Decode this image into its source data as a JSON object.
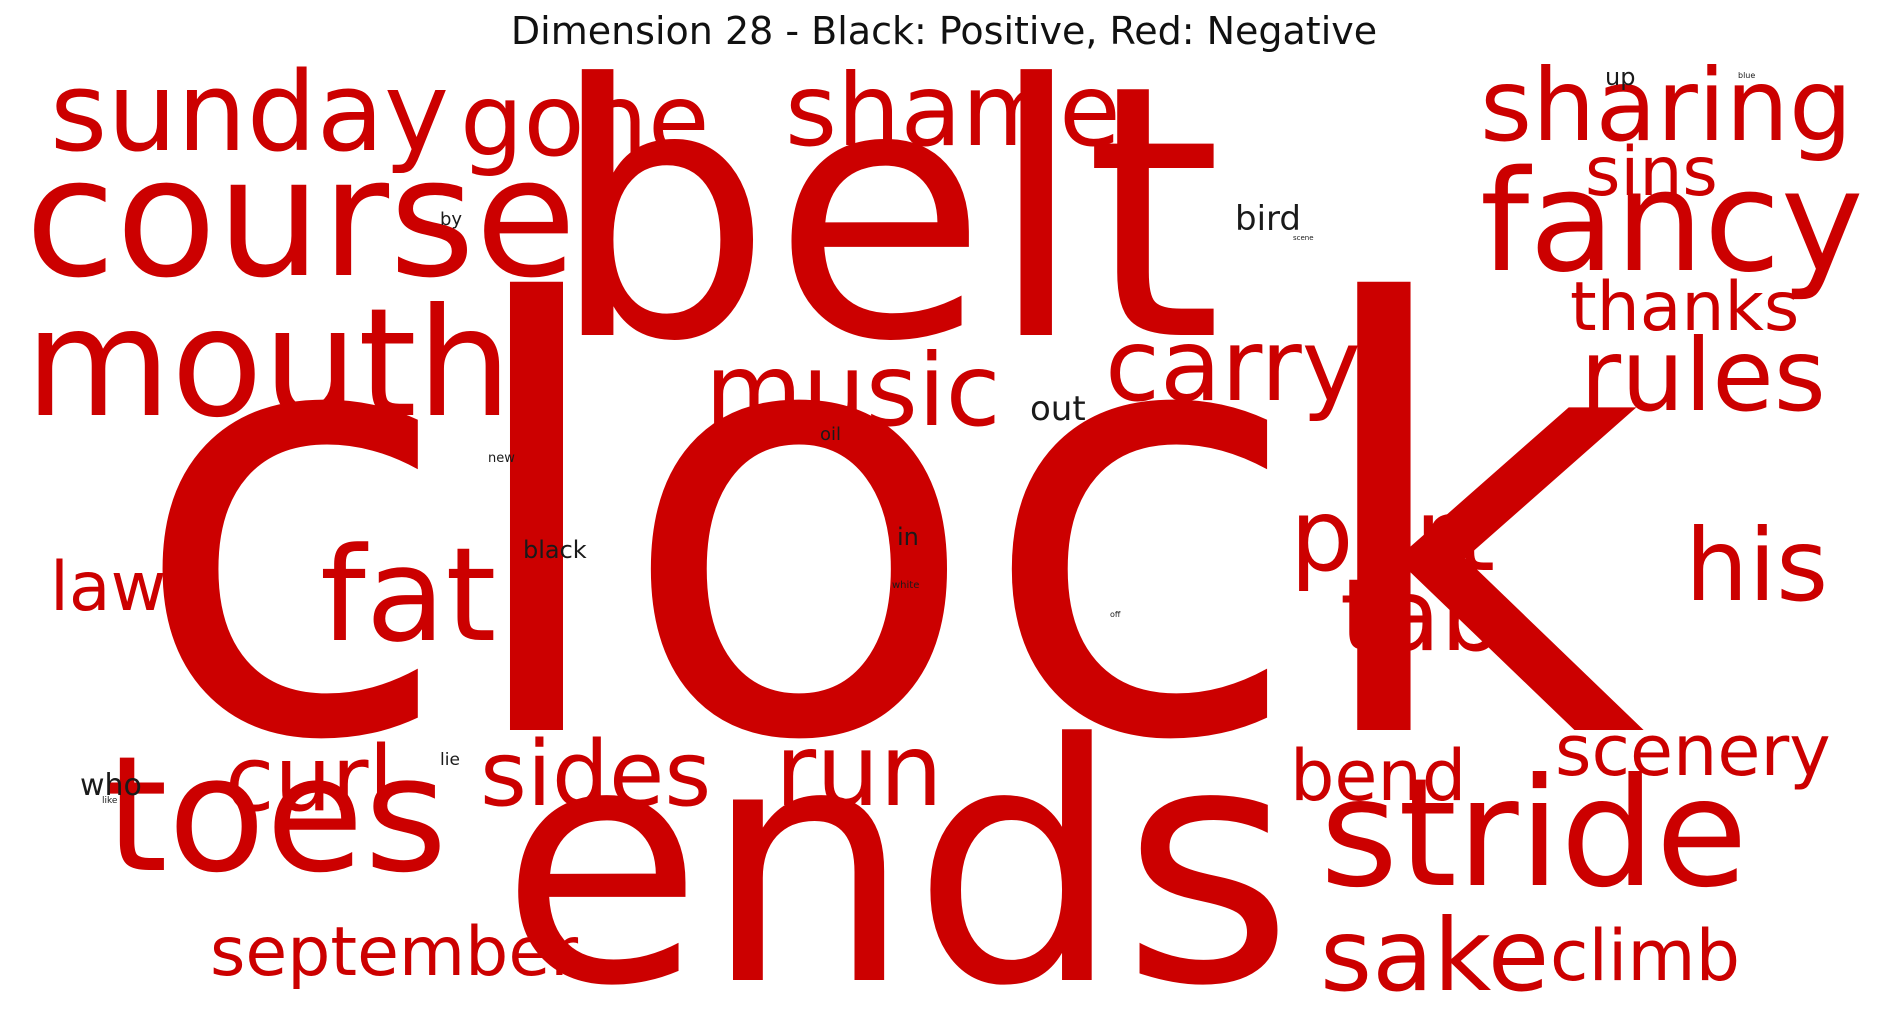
{
  "chart_data": {
    "type": "wordcloud",
    "title": "Dimension 28 - Black: Positive, Red: Negative",
    "colors": {
      "positive": "#1a1a1a",
      "negative": "#cc0000"
    },
    "words": [
      {
        "text": "clock",
        "sign": "negative",
        "weight": 1.0
      },
      {
        "text": "belt",
        "sign": "negative",
        "weight": 0.78
      },
      {
        "text": "ends",
        "sign": "negative",
        "weight": 0.7
      },
      {
        "text": "course",
        "sign": "negative",
        "weight": 0.4
      },
      {
        "text": "toes",
        "sign": "negative",
        "weight": 0.38
      },
      {
        "text": "stride",
        "sign": "negative",
        "weight": 0.34
      },
      {
        "text": "mouth",
        "sign": "negative",
        "weight": 0.34
      },
      {
        "text": "fancy",
        "sign": "negative",
        "weight": 0.3
      },
      {
        "text": "fat",
        "sign": "negative",
        "weight": 0.28
      },
      {
        "text": "sunday",
        "sign": "negative",
        "weight": 0.25
      },
      {
        "text": "sharing",
        "sign": "negative",
        "weight": 0.23
      },
      {
        "text": "gone",
        "sign": "negative",
        "weight": 0.22
      },
      {
        "text": "shame",
        "sign": "negative",
        "weight": 0.22
      },
      {
        "text": "music",
        "sign": "negative",
        "weight": 0.22
      },
      {
        "text": "carry",
        "sign": "negative",
        "weight": 0.21
      },
      {
        "text": "part",
        "sign": "negative",
        "weight": 0.21
      },
      {
        "text": "tab",
        "sign": "negative",
        "weight": 0.21
      },
      {
        "text": "rules",
        "sign": "negative",
        "weight": 0.21
      },
      {
        "text": "his",
        "sign": "negative",
        "weight": 0.21
      },
      {
        "text": "run",
        "sign": "negative",
        "weight": 0.21
      },
      {
        "text": "sake",
        "sign": "negative",
        "weight": 0.21
      },
      {
        "text": "sides",
        "sign": "negative",
        "weight": 0.19
      },
      {
        "text": "curl",
        "sign": "negative",
        "weight": 0.19
      },
      {
        "text": "bend",
        "sign": "negative",
        "weight": 0.16
      },
      {
        "text": "scenery",
        "sign": "negative",
        "weight": 0.16
      },
      {
        "text": "climb",
        "sign": "negative",
        "weight": 0.16
      },
      {
        "text": "september",
        "sign": "negative",
        "weight": 0.15
      },
      {
        "text": "sins",
        "sign": "negative",
        "weight": 0.15
      },
      {
        "text": "thanks",
        "sign": "negative",
        "weight": 0.15
      },
      {
        "text": "law",
        "sign": "negative",
        "weight": 0.15
      },
      {
        "text": "bird",
        "sign": "positive",
        "weight": 0.07
      },
      {
        "text": "out",
        "sign": "positive",
        "weight": 0.07
      },
      {
        "text": "who",
        "sign": "positive",
        "weight": 0.06
      },
      {
        "text": "black",
        "sign": "positive",
        "weight": 0.05
      },
      {
        "text": "in",
        "sign": "positive",
        "weight": 0.05
      },
      {
        "text": "up",
        "sign": "positive",
        "weight": 0.05
      },
      {
        "text": "oil",
        "sign": "positive",
        "weight": 0.04
      },
      {
        "text": "by",
        "sign": "positive",
        "weight": 0.04
      },
      {
        "text": "lie",
        "sign": "positive",
        "weight": 0.04
      },
      {
        "text": "new",
        "sign": "positive",
        "weight": 0.03
      },
      {
        "text": "white",
        "sign": "positive",
        "weight": 0.02
      },
      {
        "text": "like",
        "sign": "positive",
        "weight": 0.02
      },
      {
        "text": "off",
        "sign": "positive",
        "weight": 0.02
      },
      {
        "text": "blue",
        "sign": "positive",
        "weight": 0.02
      },
      {
        "text": "scene",
        "sign": "positive",
        "weight": 0.015
      }
    ]
  }
}
